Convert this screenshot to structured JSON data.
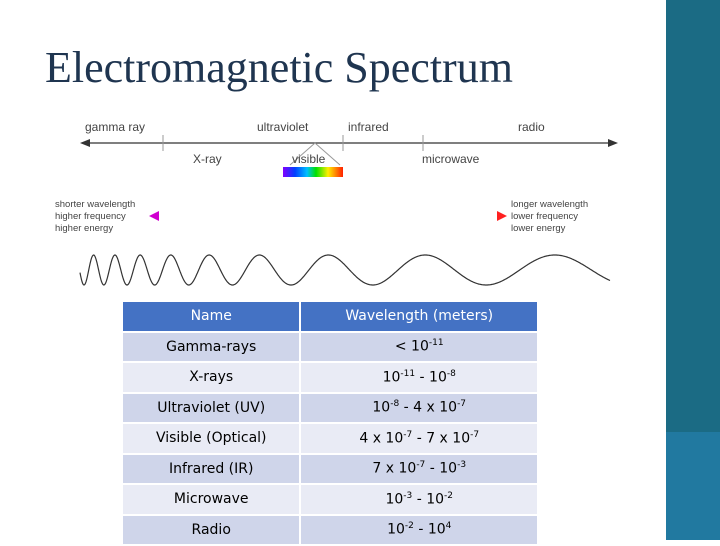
{
  "title": "Electromagnetic Spectrum",
  "diagram": {
    "top_labels": [
      "gamma ray",
      "ultraviolet",
      "infrared",
      "radio"
    ],
    "bottom_labels": [
      "X-ray",
      "visible",
      "microwave"
    ],
    "left_labels": [
      "shorter wavelength",
      "higher frequency",
      "higher energy"
    ],
    "right_labels": [
      "longer wavelength",
      "lower frequency",
      "lower energy"
    ]
  },
  "table": {
    "header": [
      "Name",
      "Wavelength (meters)"
    ],
    "rows": [
      [
        "Gamma-rays",
        [
          "< 10",
          "-11"
        ]
      ],
      [
        "X-rays",
        [
          "10",
          "-11",
          " - 10",
          "-8"
        ]
      ],
      [
        "Ultraviolet (UV)",
        [
          "10",
          "-8",
          " - 4 x 10",
          "-7"
        ]
      ],
      [
        "Visible (Optical)",
        [
          "4 x 10",
          "-7",
          " - 7 x 10",
          "-7"
        ]
      ],
      [
        "Infrared (IR)",
        [
          "7 x 10",
          "-7",
          " - 10",
          "-3"
        ]
      ],
      [
        "Microwave",
        [
          "10",
          "-3",
          " - 10",
          "-2"
        ]
      ],
      [
        "Radio",
        [
          "10",
          "-2",
          " - 10",
          "4"
        ]
      ]
    ]
  }
}
